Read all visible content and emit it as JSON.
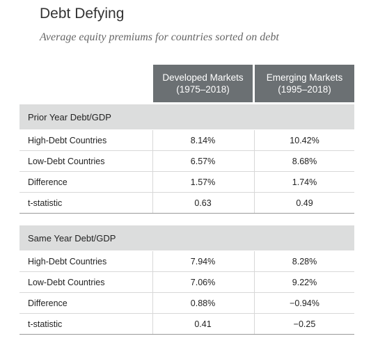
{
  "title": "Debt Defying",
  "subtitle": "Average equity premiums for countries sorted on debt",
  "columns": [
    {
      "name": "Developed Markets",
      "period": "(1975–2018)"
    },
    {
      "name": "Emerging Markets",
      "period": "(1995–2018)"
    }
  ],
  "sections": [
    {
      "label": "Prior Year Debt/GDP",
      "rows": [
        {
          "label": "High-Debt Countries",
          "values": [
            "8.14%",
            "10.42%"
          ]
        },
        {
          "label": "Low-Debt Countries",
          "values": [
            "6.57%",
            "8.68%"
          ]
        },
        {
          "label": "Difference",
          "values": [
            "1.57%",
            "1.74%"
          ]
        },
        {
          "label": "t-statistic",
          "values": [
            "0.63",
            "0.49"
          ]
        }
      ]
    },
    {
      "label": "Same Year Debt/GDP",
      "rows": [
        {
          "label": "High-Debt Countries",
          "values": [
            "7.94%",
            "8.28%"
          ]
        },
        {
          "label": "Low-Debt Countries",
          "values": [
            "7.06%",
            "9.22%"
          ]
        },
        {
          "label": "Difference",
          "values": [
            "0.88%",
            "−0.94%"
          ]
        },
        {
          "label": "t-statistic",
          "values": [
            "0.41",
            "−0.25"
          ]
        }
      ]
    }
  ]
}
